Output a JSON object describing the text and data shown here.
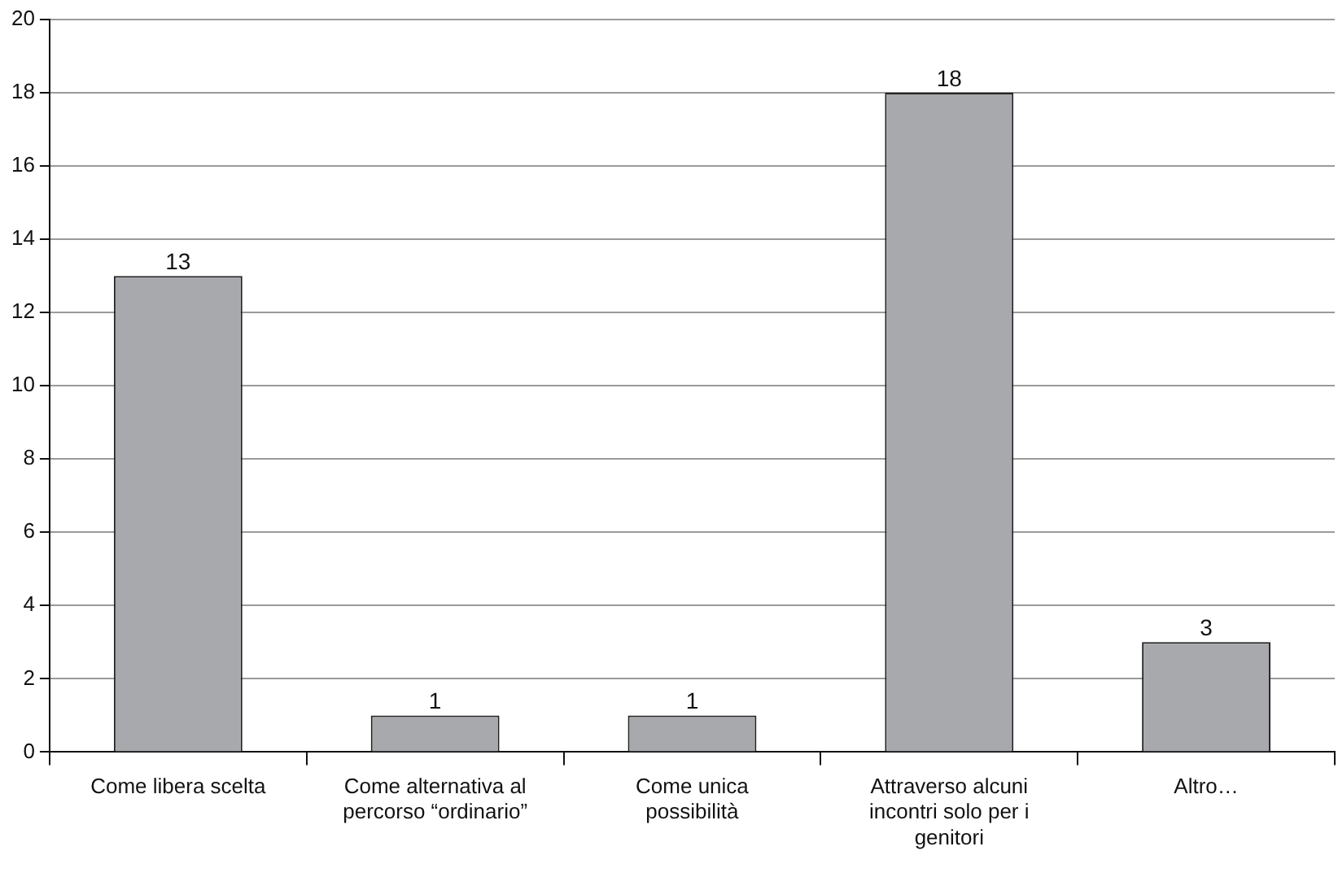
{
  "chart_data": {
    "type": "bar",
    "categories": [
      "Come libera scelta",
      "Come alternativa al percorso “ordinario”",
      "Come unica possibilità",
      "Attraverso alcuni incontri solo per i genitori",
      "Altro…"
    ],
    "values": [
      13,
      1,
      1,
      18,
      3
    ],
    "color": "#a7a9ac",
    "ylim": [
      0,
      20
    ],
    "yticks": [
      0,
      2,
      4,
      6,
      8,
      10,
      12,
      14,
      16,
      18,
      20
    ],
    "grid": "y",
    "data_labels": true,
    "legend": false
  }
}
